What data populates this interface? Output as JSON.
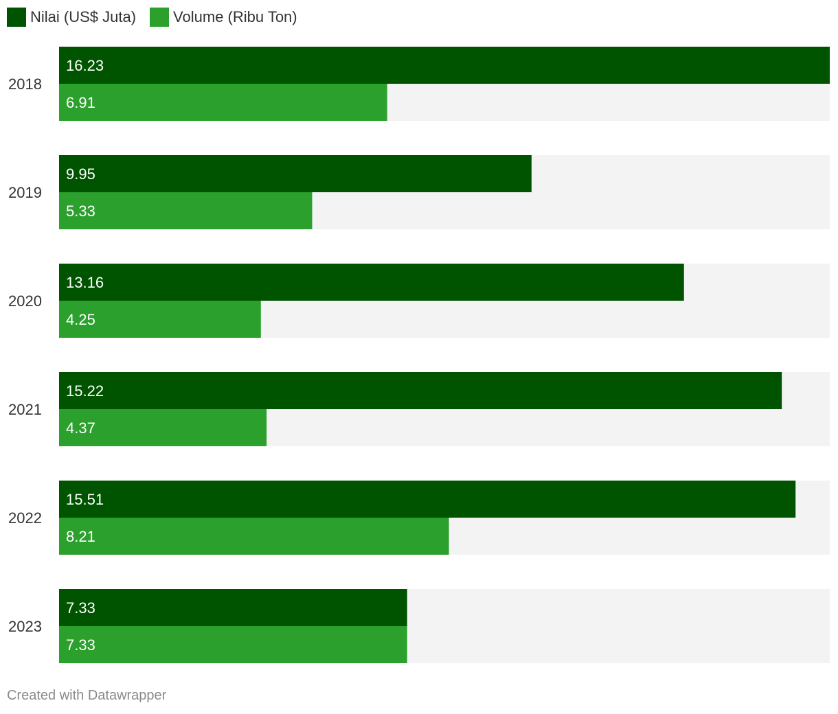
{
  "chart_data": {
    "type": "bar",
    "orientation": "horizontal",
    "categories": [
      "2018",
      "2019",
      "2020",
      "2021",
      "2022",
      "2023"
    ],
    "series": [
      {
        "name": "Nilai (US$ Juta)",
        "color": "#005400",
        "values": [
          16.23,
          9.95,
          13.16,
          15.22,
          15.51,
          7.33
        ],
        "labels": [
          "16.23",
          "9.95",
          "13.16",
          "15.22",
          "15.51",
          "7.33"
        ]
      },
      {
        "name": "Volume (Ribu Ton)",
        "color": "#2ca02c",
        "values": [
          6.91,
          5.33,
          4.25,
          4.37,
          8.21,
          7.33
        ],
        "labels": [
          "6.91",
          "5.33",
          "4.25",
          "4.37",
          "8.21",
          "7.33"
        ]
      }
    ],
    "xlim": [
      0,
      16.23
    ],
    "background_bar_color": "#f3f3f3",
    "grid": false,
    "legend": "top-left"
  },
  "footer": {
    "credit": "Created with Datawrapper"
  }
}
